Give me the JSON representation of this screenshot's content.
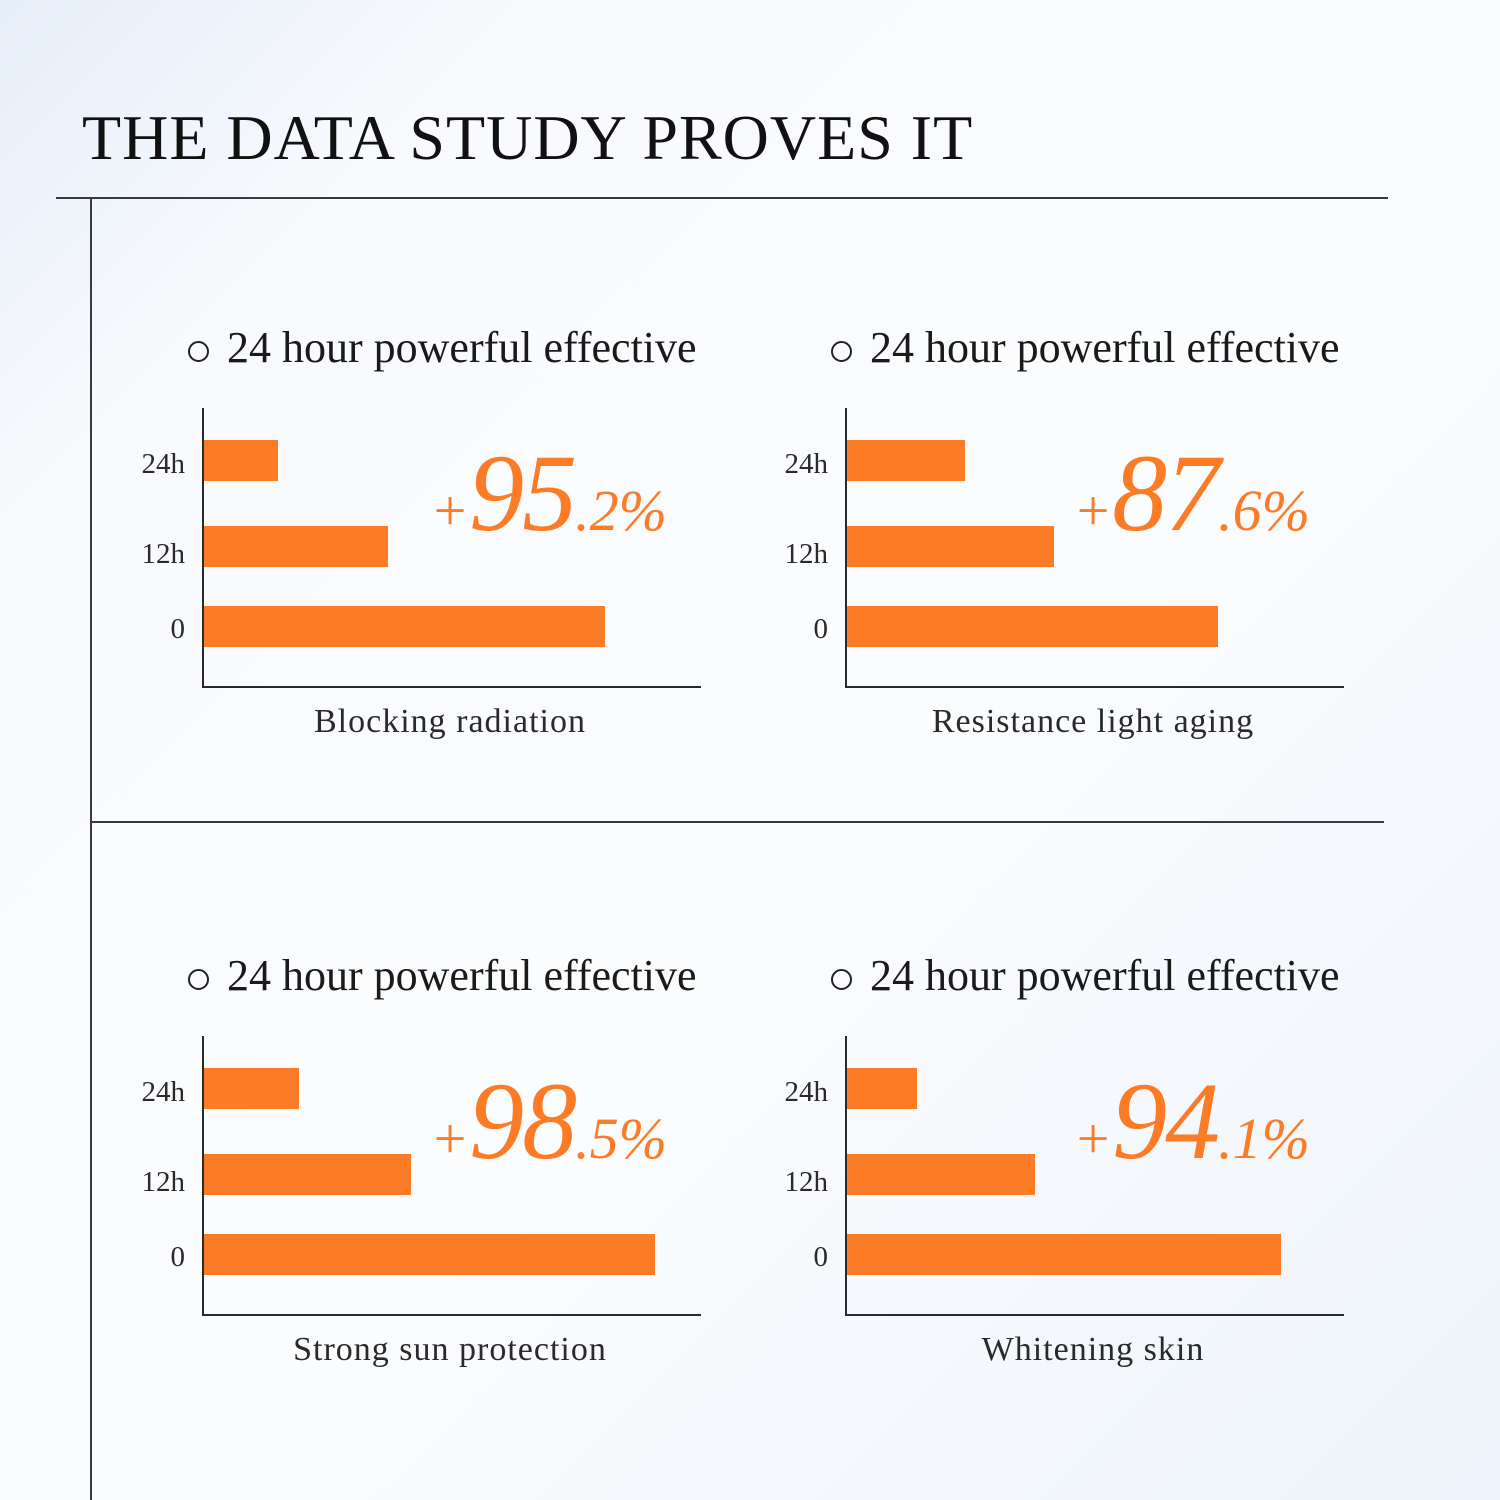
{
  "page": {
    "title": "THE DATA STUDY PROVES IT"
  },
  "chart_data": [
    {
      "type": "bar",
      "heading": "24 hour powerful effective",
      "categories": [
        "24h",
        "12h",
        "0"
      ],
      "values": [
        74,
        184,
        401
      ],
      "highlight": {
        "sign": "+",
        "integer": "95",
        "decimal": ".2%"
      },
      "caption": "Blocking radiation",
      "bar_color": "#fb7b26"
    },
    {
      "type": "bar",
      "heading": "24 hour powerful effective",
      "categories": [
        "24h",
        "12h",
        "0"
      ],
      "values": [
        118,
        207,
        371
      ],
      "highlight": {
        "sign": "+",
        "integer": "87",
        "decimal": ".6%"
      },
      "caption": "Resistance light aging",
      "bar_color": "#fb7b26"
    },
    {
      "type": "bar",
      "heading": "24 hour powerful effective",
      "categories": [
        "24h",
        "12h",
        "0"
      ],
      "values": [
        95,
        207,
        451
      ],
      "highlight": {
        "sign": "+",
        "integer": "98",
        "decimal": ".5%"
      },
      "caption": "Strong sun protection",
      "bar_color": "#fb7b26"
    },
    {
      "type": "bar",
      "heading": "24 hour powerful effective",
      "categories": [
        "24h",
        "12h",
        "0"
      ],
      "values": [
        70,
        188,
        434
      ],
      "highlight": {
        "sign": "+",
        "integer": "94",
        "decimal": ".1%"
      },
      "caption": "Whitening skin",
      "bar_color": "#fb7b26"
    }
  ]
}
